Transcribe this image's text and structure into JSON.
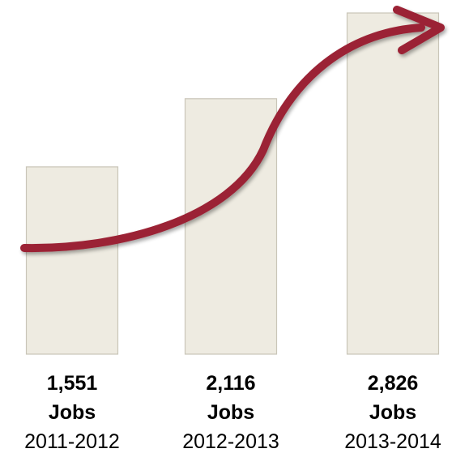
{
  "chart_data": {
    "type": "bar",
    "categories": [
      "2011-2012",
      "2012-2013",
      "2013-2014"
    ],
    "values": [
      1551,
      2116,
      2826
    ],
    "value_labels": [
      "1,551",
      "2,116",
      "2,826"
    ],
    "unit_label": "Jobs",
    "title": "",
    "xlabel": "",
    "ylabel": "",
    "ylim": [
      0,
      2826
    ],
    "grid": false,
    "legend": "none",
    "annotation": "growth-arrow",
    "colors": {
      "bar_fill": "#eeebe1",
      "bar_stroke": "#c9c5b8",
      "arrow": "#9b2335",
      "text": "#000000"
    }
  }
}
